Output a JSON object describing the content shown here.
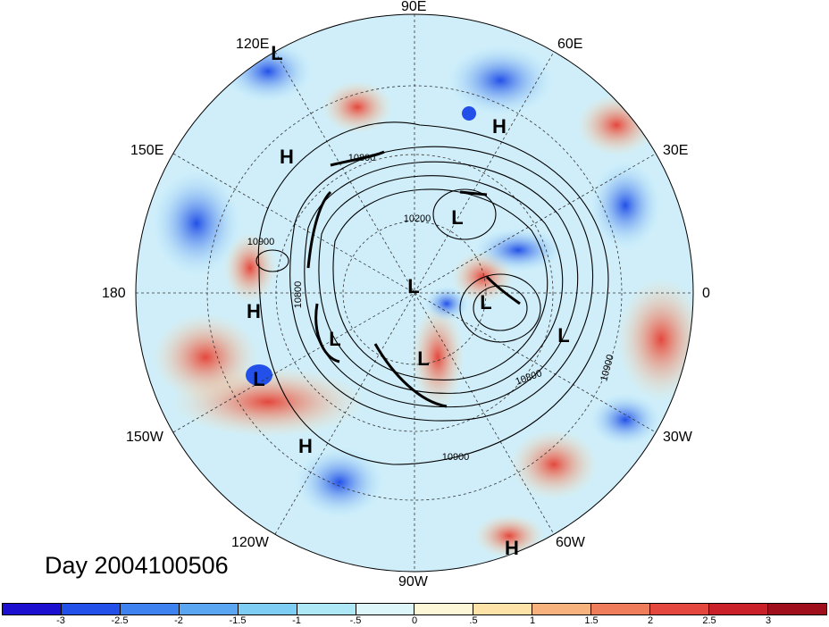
{
  "title": "Day 2004100506",
  "longitude_labels": {
    "lon_90e": "90E",
    "lon_60e": "60E",
    "lon_30e": "30E",
    "lon_0": "0",
    "lon_30w": "30W",
    "lon_60w": "60W",
    "lon_90w": "90W",
    "lon_120w": "120W",
    "lon_150w": "150W",
    "lon_180": "180",
    "lon_150e": "150E",
    "lon_120e": "120E"
  },
  "pressure_centers": [
    {
      "id": "h1",
      "text": "H"
    },
    {
      "id": "h2",
      "text": "H"
    },
    {
      "id": "h3",
      "text": "H"
    },
    {
      "id": "h4",
      "text": "H"
    },
    {
      "id": "h5",
      "text": "H"
    },
    {
      "id": "l1",
      "text": "L"
    },
    {
      "id": "l2",
      "text": "L"
    },
    {
      "id": "l3",
      "text": "L"
    },
    {
      "id": "l4",
      "text": "L"
    },
    {
      "id": "l5",
      "text": "L"
    },
    {
      "id": "l6",
      "text": "L"
    },
    {
      "id": "l7",
      "text": "L"
    },
    {
      "id": "l8",
      "text": "L"
    }
  ],
  "contour_labels": [
    "10800",
    "10200",
    "10900",
    "10800",
    "10800",
    "10900",
    "10900"
  ],
  "colorbar": {
    "colors": [
      "#1c0fd0",
      "#2350e8",
      "#3d82ef",
      "#5aa6f2",
      "#7dcdf5",
      "#aee8f7",
      "#dcf6fa",
      "#fdf7d8",
      "#fde3a8",
      "#f8b27e",
      "#ef7d5b",
      "#e4473d",
      "#c9202a",
      "#a0101c"
    ],
    "ticks": [
      "-3",
      "-2.5",
      "-2",
      "-1.5",
      "-1",
      "-.5",
      "0",
      ".5",
      "1",
      "1.5",
      "2",
      "2.5",
      "3"
    ]
  }
}
